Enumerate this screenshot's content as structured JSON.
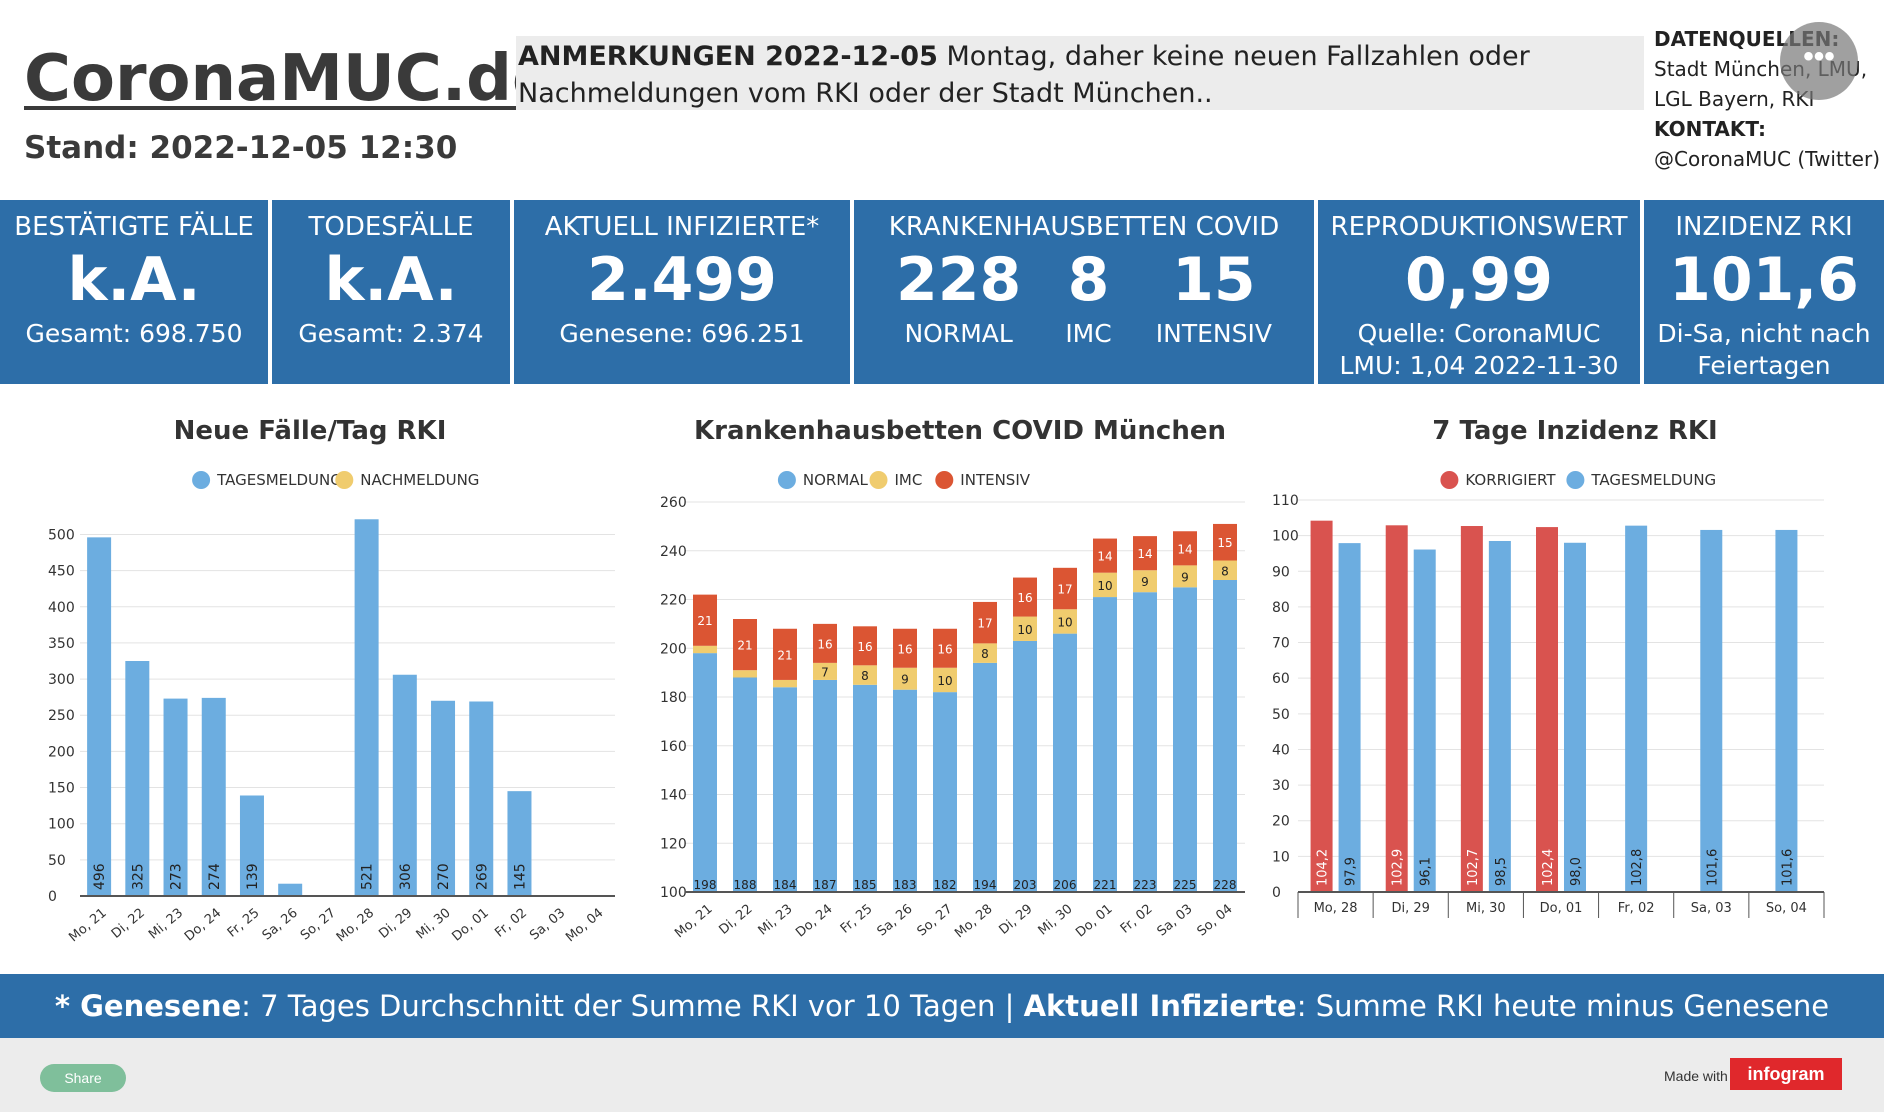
{
  "header": {
    "logo": "CoronaMUC.de",
    "stand": "Stand: 2022-12-05 12:30",
    "anm_label": "ANMERKUNGEN 2022-12-05",
    "anm_text": " Montag, daher keine neuen Fallzahlen oder Nachmeldungen vom RKI oder der Stadt München..",
    "sources_label": "DATENQUELLEN:",
    "sources_line1": "Stadt München, LMU,",
    "sources_line2": "LGL Bayern, RKI",
    "contact_label": "KONTAKT:",
    "contact_value": "@CoronaMUC (Twitter)",
    "menu_glyph": "•••"
  },
  "kpis": {
    "cases": {
      "title": "BESTÄTIGTE FÄLLE",
      "value": "k.A.",
      "sub": "Gesamt: 698.750"
    },
    "deaths": {
      "title": "TODESFÄLLE",
      "value": "k.A.",
      "sub": "Gesamt: 2.374"
    },
    "infected": {
      "title": "AKTUELL INFIZIERTE*",
      "value": "2.499",
      "sub": "Genesene: 696.251"
    },
    "beds": {
      "title": "KRANKENHAUSBETTEN COVID",
      "normal_v": "228",
      "normal_l": "NORMAL",
      "imc_v": "8",
      "imc_l": "IMC",
      "int_v": "15",
      "int_l": "INTENSIV"
    },
    "rwert": {
      "title": "REPRODUKTIONSWERT",
      "value": "0,99",
      "sub1": "Quelle: CoronaMUC",
      "sub2": "LMU: 1,04 2022-11-30"
    },
    "inzidenz": {
      "title": "INZIDENZ RKI",
      "value": "101,6",
      "sub1": "Di-Sa, nicht nach",
      "sub2": "Feiertagen"
    }
  },
  "colors": {
    "blue": "#6cade0",
    "yellow": "#f0cc6e",
    "red": "#db5533",
    "corrected": "#d9534f",
    "kpi": "#2d6ea8"
  },
  "chart_data": [
    {
      "type": "bar",
      "title": "Neue Fälle/Tag RKI",
      "legend": [
        "TAGESMELDUNG",
        "NACHMELDUNG"
      ],
      "categories": [
        "Mo, 21",
        "Di, 22",
        "Mi, 23",
        "Do, 24",
        "Fr, 25",
        "Sa, 26",
        "So, 27",
        "Mo, 28",
        "Di, 29",
        "Mi, 30",
        "Do, 01",
        "Fr, 02",
        "Sa, 03",
        "Mo, 04"
      ],
      "series": [
        {
          "name": "TAGESMELDUNG",
          "values": [
            496,
            325,
            273,
            274,
            139,
            17,
            0,
            521,
            306,
            270,
            269,
            145,
            0,
            0
          ]
        },
        {
          "name": "NACHMELDUNG",
          "values": [
            0,
            0,
            0,
            0,
            0,
            0,
            0,
            0,
            0,
            0,
            0,
            0,
            0,
            0
          ]
        }
      ],
      "labels": [
        "496",
        "325",
        "273",
        "274",
        "139",
        "",
        "",
        "521",
        "306",
        "270",
        "269",
        "145",
        "",
        ""
      ],
      "yticks": [
        0,
        50,
        100,
        150,
        200,
        250,
        300,
        350,
        400,
        450,
        500
      ],
      "ylim": [
        0,
        520
      ]
    },
    {
      "type": "bar",
      "title": "Krankenhausbetten COVID München",
      "legend": [
        "NORMAL",
        "IMC",
        "INTENSIV"
      ],
      "categories": [
        "Mo, 21",
        "Di, 22",
        "Mi, 23",
        "Do, 24",
        "Fr, 25",
        "Sa, 26",
        "So, 27",
        "Mo, 28",
        "Di, 29",
        "Mi, 30",
        "Do, 01",
        "Fr, 02",
        "Sa, 03",
        "So, 04"
      ],
      "series": [
        {
          "name": "NORMAL",
          "values": [
            198,
            188,
            184,
            187,
            185,
            183,
            182,
            194,
            203,
            206,
            221,
            223,
            225,
            228
          ]
        },
        {
          "name": "IMC",
          "values": [
            3,
            3,
            3,
            7,
            8,
            9,
            10,
            8,
            10,
            10,
            10,
            9,
            9,
            8
          ]
        },
        {
          "name": "INTENSIV",
          "values": [
            21,
            21,
            21,
            16,
            16,
            16,
            16,
            17,
            16,
            17,
            14,
            14,
            14,
            15
          ]
        }
      ],
      "imc_labels": [
        "",
        "",
        "",
        "7",
        "8",
        "9",
        "10",
        "8",
        "10",
        "10",
        "10",
        "9",
        "9",
        "8"
      ],
      "yticks": [
        100,
        120,
        140,
        160,
        180,
        200,
        220,
        240,
        260
      ],
      "ylim": [
        100,
        260
      ]
    },
    {
      "type": "bar",
      "title": "7 Tage Inzidenz RKI",
      "legend": [
        "KORRIGIERT",
        "TAGESMELDUNG"
      ],
      "categories": [
        "Mo, 28",
        "Di, 29",
        "Mi, 30",
        "Do, 01",
        "Fr, 02",
        "Sa, 03",
        "So, 04"
      ],
      "series": [
        {
          "name": "KORRIGIERT",
          "values": [
            104.2,
            102.9,
            102.7,
            102.4,
            null,
            null,
            null
          ],
          "labels": [
            "104,2",
            "102,9",
            "102,7",
            "102,4",
            "",
            "",
            ""
          ]
        },
        {
          "name": "TAGESMELDUNG",
          "values": [
            97.9,
            96.1,
            98.5,
            98.0,
            102.8,
            101.6,
            101.6
          ],
          "labels": [
            "97,9",
            "96,1",
            "98,5",
            "98,0",
            "102,8",
            "101,6",
            "101,6"
          ]
        }
      ],
      "yticks": [
        0,
        10,
        20,
        30,
        40,
        50,
        60,
        70,
        80,
        90,
        100,
        110
      ],
      "ylim": [
        0,
        110
      ]
    }
  ],
  "footer": {
    "part1": "* Genesene",
    "part2": ":  7 Tages Durchschnitt der Summe RKI vor 10 Tagen | ",
    "part3": "Aktuell Infizierte",
    "part4": ": Summe RKI heute minus Genesene"
  },
  "bottom": {
    "share": "Share",
    "made_with": "Made with",
    "brand": "infogram"
  }
}
